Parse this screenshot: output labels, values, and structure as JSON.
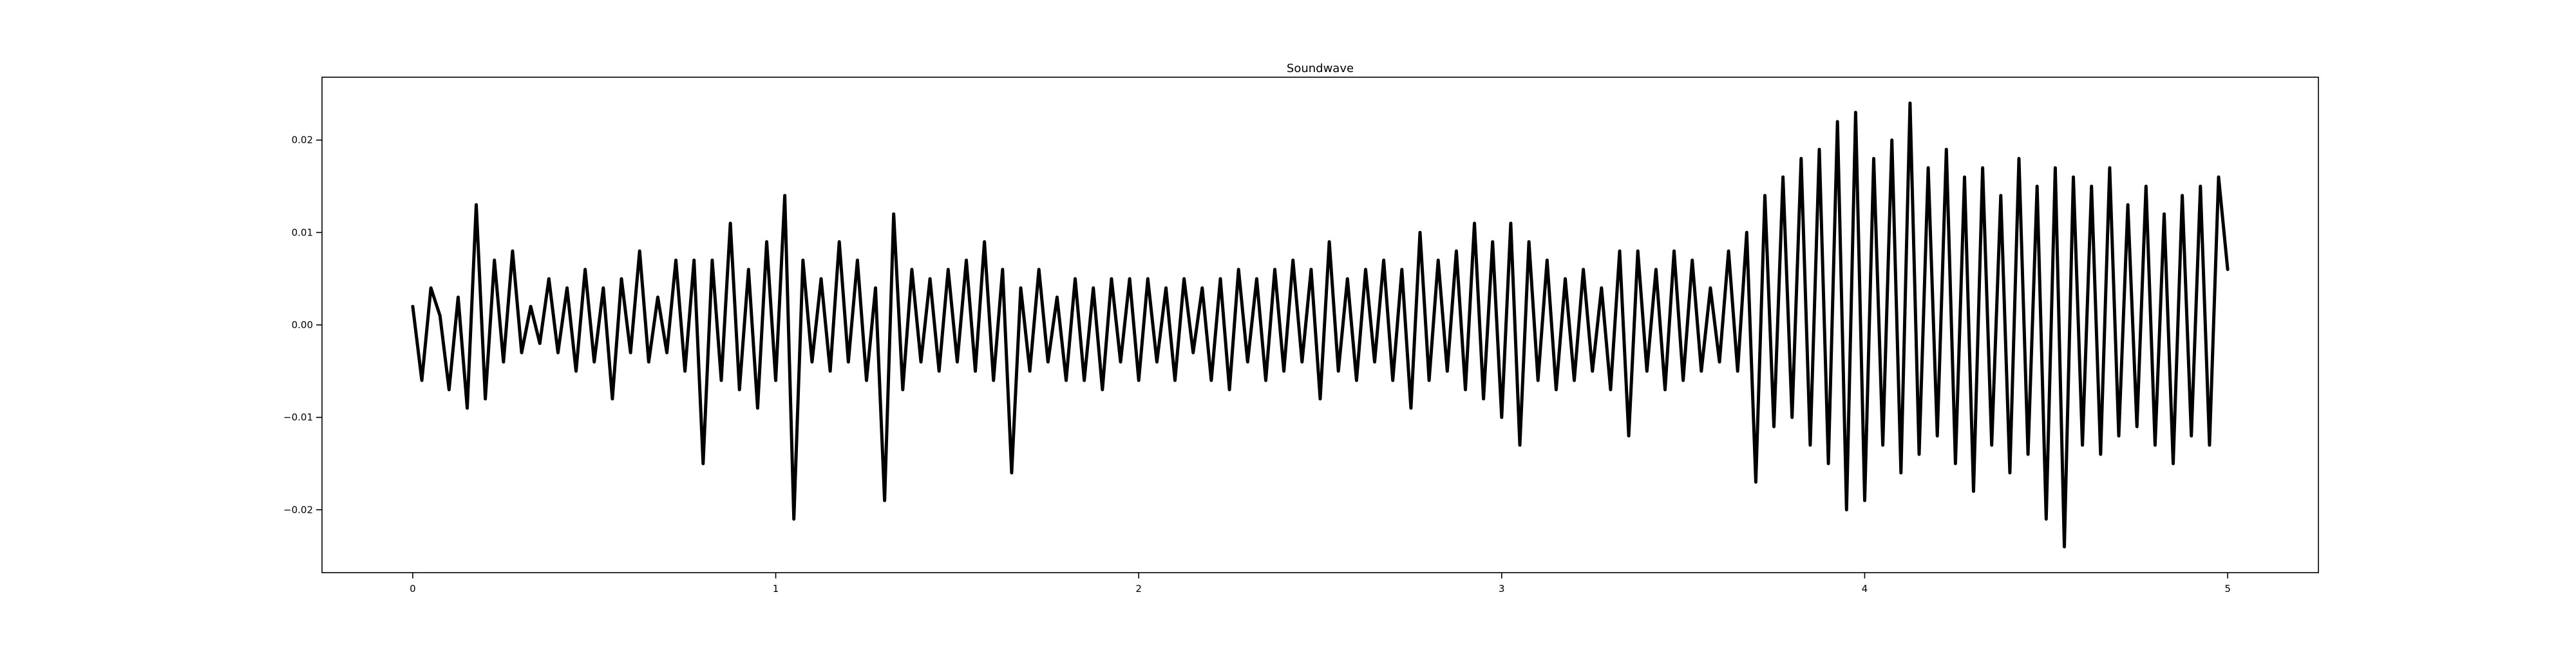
{
  "chart_data": {
    "type": "line",
    "title": "Soundwave",
    "xlabel": "",
    "ylabel": "",
    "xlim": [
      -0.25,
      5.25
    ],
    "ylim": [
      -0.0268,
      0.0268
    ],
    "xticks": [
      0,
      1,
      2,
      3,
      4,
      5
    ],
    "xtick_labels": [
      "0",
      "1",
      "2",
      "3",
      "4",
      "5"
    ],
    "yticks": [
      -0.02,
      -0.01,
      0.0,
      0.01,
      0.02
    ],
    "ytick_labels": [
      "−0.02",
      "−0.01",
      "0.00",
      "0.01",
      "0.02"
    ],
    "grid": false,
    "legend": "none",
    "line_color": "#000000",
    "series": [
      {
        "x": [
          0.0,
          0.025,
          0.05,
          0.075,
          0.1,
          0.125,
          0.15,
          0.175,
          0.2,
          0.225,
          0.25,
          0.275,
          0.3,
          0.325,
          0.35,
          0.375,
          0.4,
          0.425,
          0.45,
          0.475,
          0.5,
          0.525,
          0.55,
          0.575,
          0.6,
          0.625,
          0.65,
          0.675,
          0.7,
          0.725,
          0.75,
          0.775,
          0.8,
          0.825,
          0.85,
          0.875,
          0.9,
          0.925,
          0.95,
          0.975,
          1.0,
          1.025,
          1.05,
          1.075,
          1.1,
          1.125,
          1.15,
          1.175,
          1.2,
          1.225,
          1.25,
          1.275,
          1.3,
          1.325,
          1.35,
          1.375,
          1.4,
          1.425,
          1.45,
          1.475,
          1.5,
          1.525,
          1.55,
          1.575,
          1.6,
          1.625,
          1.65,
          1.675,
          1.7,
          1.725,
          1.75,
          1.775,
          1.8,
          1.825,
          1.85,
          1.875,
          1.9,
          1.925,
          1.95,
          1.975,
          2.0,
          2.025,
          2.05,
          2.075,
          2.1,
          2.125,
          2.15,
          2.175,
          2.2,
          2.225,
          2.25,
          2.275,
          2.3,
          2.325,
          2.35,
          2.375,
          2.4,
          2.425,
          2.45,
          2.475,
          2.5,
          2.525,
          2.55,
          2.575,
          2.6,
          2.625,
          2.65,
          2.675,
          2.7,
          2.725,
          2.75,
          2.775,
          2.8,
          2.825,
          2.85,
          2.875,
          2.9,
          2.925,
          2.95,
          2.975,
          3.0,
          3.025,
          3.05,
          3.075,
          3.1,
          3.125,
          3.15,
          3.175,
          3.2,
          3.225,
          3.25,
          3.275,
          3.3,
          3.325,
          3.35,
          3.375,
          3.4,
          3.425,
          3.45,
          3.475,
          3.5,
          3.525,
          3.55,
          3.575,
          3.6,
          3.625,
          3.65,
          3.675,
          3.7,
          3.725,
          3.75,
          3.775,
          3.8,
          3.825,
          3.85,
          3.875,
          3.9,
          3.925,
          3.95,
          3.975,
          4.0,
          4.025,
          4.05,
          4.075,
          4.1,
          4.125,
          4.15,
          4.175,
          4.2,
          4.225,
          4.25,
          4.275,
          4.3,
          4.325,
          4.35,
          4.375,
          4.4,
          4.425,
          4.45,
          4.475,
          4.5,
          4.525,
          4.55,
          4.575,
          4.6,
          4.625,
          4.65,
          4.675,
          4.7,
          4.725,
          4.75,
          4.775,
          4.8,
          4.825,
          4.85,
          4.875,
          4.9,
          4.925,
          4.95,
          4.975,
          5.0
        ],
        "y": [
          0.002,
          -0.006,
          0.004,
          0.001,
          -0.007,
          0.003,
          -0.009,
          0.013,
          -0.008,
          0.007,
          -0.004,
          0.008,
          -0.003,
          0.002,
          -0.002,
          0.005,
          -0.003,
          0.004,
          -0.005,
          0.006,
          -0.004,
          0.004,
          -0.008,
          0.005,
          -0.003,
          0.008,
          -0.004,
          0.003,
          -0.003,
          0.007,
          -0.005,
          0.007,
          -0.015,
          0.007,
          -0.006,
          0.011,
          -0.007,
          0.006,
          -0.009,
          0.009,
          -0.006,
          0.014,
          -0.021,
          0.007,
          -0.004,
          0.005,
          -0.005,
          0.009,
          -0.004,
          0.007,
          -0.006,
          0.004,
          -0.019,
          0.012,
          -0.007,
          0.006,
          -0.004,
          0.005,
          -0.005,
          0.006,
          -0.004,
          0.007,
          -0.005,
          0.009,
          -0.006,
          0.006,
          -0.016,
          0.004,
          -0.005,
          0.006,
          -0.004,
          0.003,
          -0.006,
          0.005,
          -0.006,
          0.004,
          -0.007,
          0.005,
          -0.004,
          0.005,
          -0.006,
          0.005,
          -0.004,
          0.004,
          -0.006,
          0.005,
          -0.003,
          0.004,
          -0.006,
          0.005,
          -0.007,
          0.006,
          -0.004,
          0.005,
          -0.006,
          0.006,
          -0.005,
          0.007,
          -0.004,
          0.006,
          -0.008,
          0.009,
          -0.005,
          0.005,
          -0.006,
          0.006,
          -0.004,
          0.007,
          -0.006,
          0.006,
          -0.009,
          0.01,
          -0.006,
          0.007,
          -0.005,
          0.008,
          -0.007,
          0.011,
          -0.008,
          0.009,
          -0.01,
          0.011,
          -0.013,
          0.009,
          -0.006,
          0.007,
          -0.007,
          0.005,
          -0.006,
          0.006,
          -0.005,
          0.004,
          -0.007,
          0.008,
          -0.012,
          0.008,
          -0.005,
          0.006,
          -0.007,
          0.008,
          -0.006,
          0.007,
          -0.005,
          0.004,
          -0.004,
          0.008,
          -0.005,
          0.01,
          -0.017,
          0.014,
          -0.011,
          0.016,
          -0.01,
          0.018,
          -0.013,
          0.019,
          -0.015,
          0.022,
          -0.02,
          0.023,
          -0.019,
          0.018,
          -0.013,
          0.02,
          -0.016,
          0.024,
          -0.014,
          0.017,
          -0.012,
          0.019,
          -0.015,
          0.016,
          -0.018,
          0.017,
          -0.013,
          0.014,
          -0.016,
          0.018,
          -0.014,
          0.015,
          -0.021,
          0.017,
          -0.024,
          0.016,
          -0.013,
          0.015,
          -0.014,
          0.017,
          -0.012,
          0.013,
          -0.011,
          0.015,
          -0.013,
          0.012,
          -0.015,
          0.014,
          -0.012,
          0.015,
          -0.013,
          0.016,
          0.006
        ]
      }
    ]
  }
}
